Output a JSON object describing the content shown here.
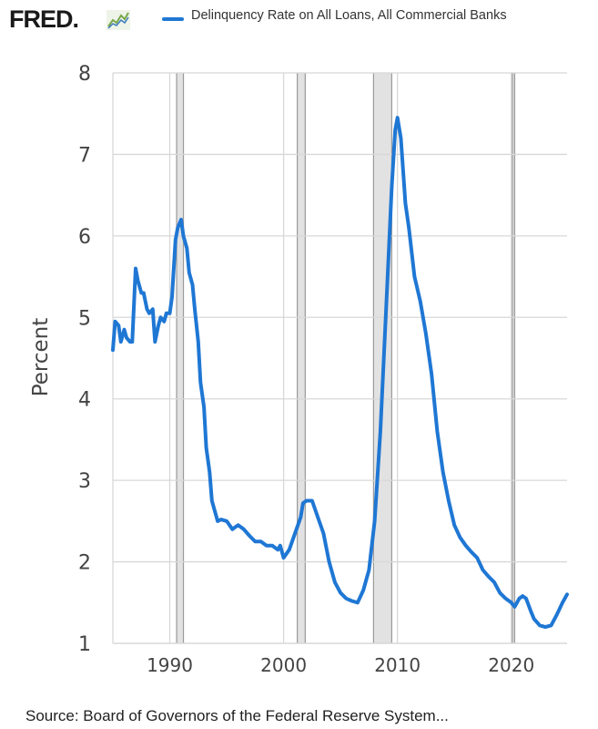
{
  "header": {
    "logo_text": "FRED",
    "logo_dot": ".",
    "legend_label": "Delinquency Rate on All Loans, All Commercial Banks",
    "series_color": "#1f77d4"
  },
  "footer": {
    "source": "Source: Board of Governors of the Federal Reserve System..."
  },
  "chart_data": {
    "type": "line",
    "ylabel": "Percent",
    "xlabel": "",
    "title": "",
    "ylim": [
      1,
      8
    ],
    "xlim": [
      1985,
      2024.9
    ],
    "yticks": [
      1,
      2,
      3,
      4,
      5,
      6,
      7,
      8
    ],
    "xticks": [
      1990,
      2000,
      2010,
      2020
    ],
    "grid": true,
    "recessions": [
      [
        1990.6,
        1991.2
      ],
      [
        2001.2,
        2001.9
      ],
      [
        2007.9,
        2009.5
      ],
      [
        2020.1,
        2020.3
      ]
    ],
    "recession_color": "#e2e2e2",
    "series": [
      {
        "name": "Delinquency Rate on All Loans, All Commercial Banks",
        "color": "#1f77d4",
        "points": [
          [
            1985.0,
            4.6
          ],
          [
            1985.2,
            4.95
          ],
          [
            1985.5,
            4.9
          ],
          [
            1985.7,
            4.7
          ],
          [
            1986.0,
            4.85
          ],
          [
            1986.2,
            4.75
          ],
          [
            1986.5,
            4.7
          ],
          [
            1986.7,
            4.7
          ],
          [
            1987.0,
            5.6
          ],
          [
            1987.2,
            5.45
          ],
          [
            1987.5,
            5.3
          ],
          [
            1987.7,
            5.3
          ],
          [
            1988.0,
            5.1
          ],
          [
            1988.2,
            5.05
          ],
          [
            1988.5,
            5.1
          ],
          [
            1988.7,
            4.7
          ],
          [
            1989.0,
            4.9
          ],
          [
            1989.2,
            5.0
          ],
          [
            1989.5,
            4.95
          ],
          [
            1989.7,
            5.05
          ],
          [
            1990.0,
            5.05
          ],
          [
            1990.2,
            5.25
          ],
          [
            1990.5,
            5.95
          ],
          [
            1990.7,
            6.1
          ],
          [
            1991.0,
            6.2
          ],
          [
            1991.2,
            6.0
          ],
          [
            1991.5,
            5.85
          ],
          [
            1991.7,
            5.55
          ],
          [
            1992.0,
            5.4
          ],
          [
            1992.2,
            5.1
          ],
          [
            1992.5,
            4.7
          ],
          [
            1992.7,
            4.2
          ],
          [
            1993.0,
            3.9
          ],
          [
            1993.2,
            3.4
          ],
          [
            1993.5,
            3.1
          ],
          [
            1993.7,
            2.75
          ],
          [
            1994.0,
            2.6
          ],
          [
            1994.2,
            2.5
          ],
          [
            1994.5,
            2.52
          ],
          [
            1995.0,
            2.5
          ],
          [
            1995.5,
            2.4
          ],
          [
            1996.0,
            2.45
          ],
          [
            1996.5,
            2.4
          ],
          [
            1997.0,
            2.32
          ],
          [
            1997.5,
            2.25
          ],
          [
            1998.0,
            2.25
          ],
          [
            1998.5,
            2.2
          ],
          [
            1999.0,
            2.2
          ],
          [
            1999.5,
            2.15
          ],
          [
            1999.7,
            2.2
          ],
          [
            2000.0,
            2.05
          ],
          [
            2000.5,
            2.15
          ],
          [
            2001.0,
            2.35
          ],
          [
            2001.5,
            2.55
          ],
          [
            2001.7,
            2.72
          ],
          [
            2002.0,
            2.75
          ],
          [
            2002.5,
            2.75
          ],
          [
            2003.0,
            2.55
          ],
          [
            2003.5,
            2.35
          ],
          [
            2004.0,
            2.0
          ],
          [
            2004.5,
            1.75
          ],
          [
            2005.0,
            1.62
          ],
          [
            2005.5,
            1.55
          ],
          [
            2006.0,
            1.52
          ],
          [
            2006.5,
            1.5
          ],
          [
            2007.0,
            1.65
          ],
          [
            2007.5,
            1.9
          ],
          [
            2008.0,
            2.5
          ],
          [
            2008.5,
            3.6
          ],
          [
            2009.0,
            5.1
          ],
          [
            2009.5,
            6.6
          ],
          [
            2009.8,
            7.3
          ],
          [
            2010.0,
            7.45
          ],
          [
            2010.3,
            7.2
          ],
          [
            2010.7,
            6.4
          ],
          [
            2011.0,
            6.1
          ],
          [
            2011.5,
            5.5
          ],
          [
            2012.0,
            5.2
          ],
          [
            2012.5,
            4.8
          ],
          [
            2013.0,
            4.3
          ],
          [
            2013.5,
            3.6
          ],
          [
            2014.0,
            3.1
          ],
          [
            2014.5,
            2.75
          ],
          [
            2015.0,
            2.45
          ],
          [
            2015.5,
            2.3
          ],
          [
            2016.0,
            2.2
          ],
          [
            2016.5,
            2.12
          ],
          [
            2017.0,
            2.05
          ],
          [
            2017.5,
            1.9
          ],
          [
            2018.0,
            1.82
          ],
          [
            2018.5,
            1.75
          ],
          [
            2019.0,
            1.62
          ],
          [
            2019.5,
            1.55
          ],
          [
            2020.0,
            1.5
          ],
          [
            2020.3,
            1.45
          ],
          [
            2020.7,
            1.55
          ],
          [
            2021.0,
            1.58
          ],
          [
            2021.3,
            1.55
          ],
          [
            2021.7,
            1.4
          ],
          [
            2022.0,
            1.3
          ],
          [
            2022.5,
            1.22
          ],
          [
            2023.0,
            1.2
          ],
          [
            2023.5,
            1.22
          ],
          [
            2024.0,
            1.35
          ],
          [
            2024.5,
            1.5
          ],
          [
            2024.9,
            1.6
          ]
        ]
      }
    ]
  }
}
